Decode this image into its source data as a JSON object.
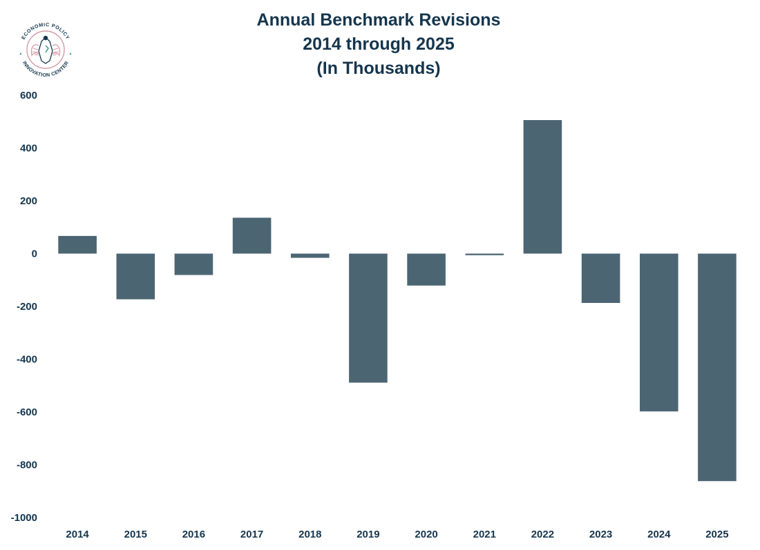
{
  "logo": {
    "text_top": "ECONOMIC POLICY",
    "text_bottom": "INNOVATION CENTER",
    "colors": {
      "ring": "#d39aa6",
      "text": "#15354d",
      "accent": "#d39aa6"
    }
  },
  "chart_data": {
    "type": "bar",
    "title_lines": [
      "Annual Benchmark Revisions",
      "2014 through 2025",
      "(In Thousands)"
    ],
    "categories": [
      "2014",
      "2015",
      "2016",
      "2017",
      "2018",
      "2019",
      "2020",
      "2021",
      "2022",
      "2023",
      "2024",
      "2025"
    ],
    "values": [
      67,
      -173,
      -81,
      136,
      -16,
      -489,
      -121,
      -6,
      506,
      -187,
      -598,
      -862
    ],
    "ylim": [
      -1000,
      600
    ],
    "yticks": [
      600,
      400,
      200,
      0,
      -200,
      -400,
      -600,
      -800,
      -1000
    ],
    "grid": false,
    "legend": "none",
    "bar_color": "#4c6573",
    "text_color": "#15354d"
  }
}
